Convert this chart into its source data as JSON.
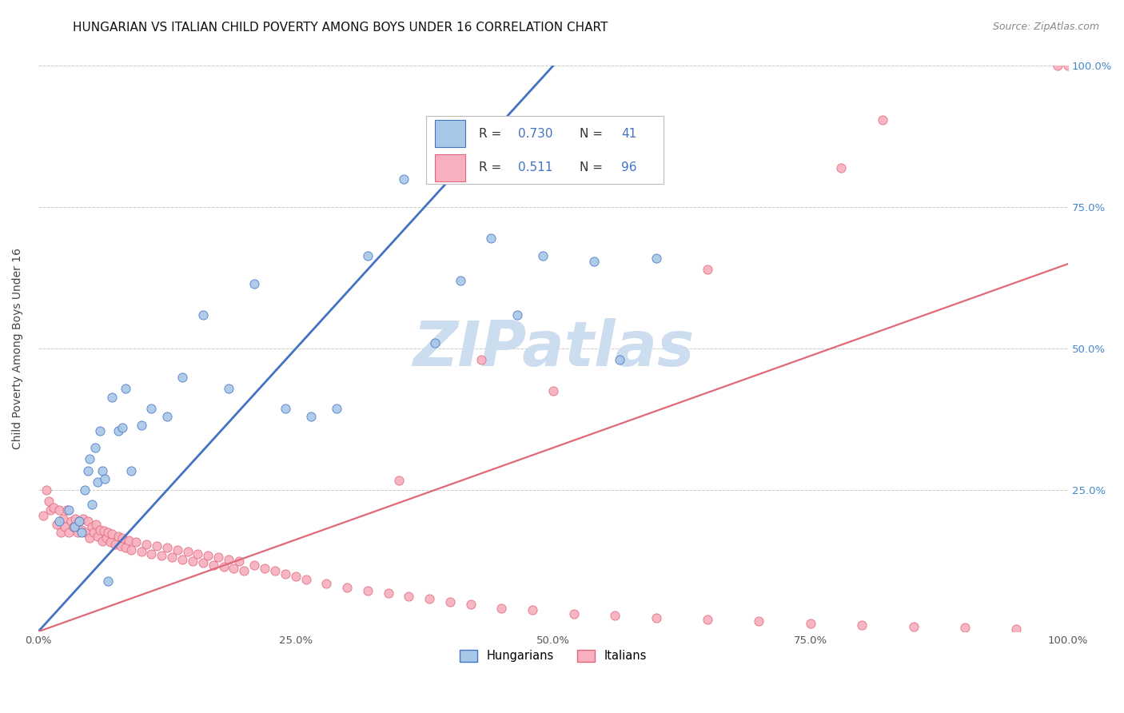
{
  "title": "HUNGARIAN VS ITALIAN CHILD POVERTY AMONG BOYS UNDER 16 CORRELATION CHART",
  "source": "Source: ZipAtlas.com",
  "ylabel": "Child Poverty Among Boys Under 16",
  "xlim": [
    0,
    1
  ],
  "ylim": [
    0,
    1
  ],
  "xtick_vals": [
    0.0,
    0.25,
    0.5,
    0.75,
    1.0
  ],
  "xtick_labels": [
    "0.0%",
    "25.0%",
    "50.0%",
    "75.0%",
    "100.0%"
  ],
  "ytick_vals": [
    0.25,
    0.5,
    0.75,
    1.0
  ],
  "ytick_labels_right": [
    "25.0%",
    "50.0%",
    "75.0%",
    "100.0%"
  ],
  "r_hungarian": "0.730",
  "n_hungarian": "41",
  "r_italian": "0.511",
  "n_italian": "96",
  "color_h": "#a8c8e8",
  "color_i": "#f8b0c0",
  "color_lh": "#4472c4",
  "color_li": "#e06878",
  "color_watermark": "#ccddf0",
  "watermark": "ZIPatlas",
  "legend_label_h": "Hungarians",
  "legend_label_i": "Italians",
  "title_fontsize": 11,
  "source_fontsize": 9,
  "tick_fontsize": 9.5,
  "ylabel_fontsize": 10,
  "hungarian_x": [
    0.02,
    0.03,
    0.035,
    0.04,
    0.042,
    0.045,
    0.048,
    0.05,
    0.052,
    0.055,
    0.058,
    0.06,
    0.062,
    0.065,
    0.068,
    0.072,
    0.078,
    0.082,
    0.085,
    0.09,
    0.1,
    0.11,
    0.125,
    0.14,
    0.16,
    0.185,
    0.21,
    0.24,
    0.265,
    0.29,
    0.32,
    0.355,
    0.385,
    0.41,
    0.44,
    0.465,
    0.49,
    0.515,
    0.54,
    0.565,
    0.6
  ],
  "hungarian_y": [
    0.195,
    0.215,
    0.185,
    0.195,
    0.175,
    0.25,
    0.285,
    0.305,
    0.225,
    0.325,
    0.265,
    0.355,
    0.285,
    0.27,
    0.09,
    0.415,
    0.355,
    0.36,
    0.43,
    0.285,
    0.365,
    0.395,
    0.38,
    0.45,
    0.56,
    0.43,
    0.615,
    0.395,
    0.38,
    0.395,
    0.665,
    0.8,
    0.51,
    0.62,
    0.695,
    0.56,
    0.665,
    0.815,
    0.655,
    0.48,
    0.66
  ],
  "italian_x": [
    0.005,
    0.008,
    0.01,
    0.012,
    0.015,
    0.018,
    0.02,
    0.022,
    0.024,
    0.026,
    0.028,
    0.03,
    0.032,
    0.034,
    0.036,
    0.038,
    0.04,
    0.042,
    0.044,
    0.046,
    0.048,
    0.05,
    0.052,
    0.054,
    0.056,
    0.058,
    0.06,
    0.062,
    0.064,
    0.066,
    0.068,
    0.07,
    0.072,
    0.075,
    0.078,
    0.08,
    0.082,
    0.085,
    0.088,
    0.09,
    0.095,
    0.1,
    0.105,
    0.11,
    0.115,
    0.12,
    0.125,
    0.13,
    0.135,
    0.14,
    0.145,
    0.15,
    0.155,
    0.16,
    0.165,
    0.17,
    0.175,
    0.18,
    0.185,
    0.19,
    0.195,
    0.2,
    0.21,
    0.22,
    0.23,
    0.24,
    0.25,
    0.26,
    0.28,
    0.3,
    0.32,
    0.34,
    0.36,
    0.38,
    0.4,
    0.42,
    0.45,
    0.48,
    0.52,
    0.56,
    0.6,
    0.65,
    0.7,
    0.75,
    0.8,
    0.85,
    0.9,
    0.95,
    1.0,
    0.35,
    0.43,
    0.5,
    0.65,
    0.78,
    0.82,
    0.99
  ],
  "italian_y": [
    0.205,
    0.25,
    0.23,
    0.215,
    0.22,
    0.19,
    0.215,
    0.175,
    0.2,
    0.185,
    0.215,
    0.175,
    0.195,
    0.185,
    0.2,
    0.175,
    0.195,
    0.18,
    0.2,
    0.175,
    0.195,
    0.165,
    0.185,
    0.175,
    0.19,
    0.168,
    0.18,
    0.16,
    0.178,
    0.165,
    0.175,
    0.158,
    0.172,
    0.155,
    0.168,
    0.152,
    0.165,
    0.148,
    0.162,
    0.145,
    0.158,
    0.142,
    0.155,
    0.138,
    0.152,
    0.135,
    0.148,
    0.132,
    0.145,
    0.128,
    0.142,
    0.125,
    0.138,
    0.122,
    0.135,
    0.118,
    0.132,
    0.115,
    0.128,
    0.112,
    0.125,
    0.108,
    0.118,
    0.112,
    0.108,
    0.102,
    0.098,
    0.092,
    0.085,
    0.078,
    0.072,
    0.068,
    0.062,
    0.058,
    0.052,
    0.048,
    0.042,
    0.038,
    0.032,
    0.028,
    0.025,
    0.022,
    0.018,
    0.015,
    0.012,
    0.009,
    0.007,
    0.005,
    1.0,
    0.268,
    0.48,
    0.425,
    0.64,
    0.82,
    0.905,
    1.0
  ],
  "line_h_x0": 0.0,
  "line_h_y0": 0.0,
  "line_h_x1": 0.5,
  "line_h_y1": 1.0,
  "line_i_x0": 0.0,
  "line_i_y0": 0.0,
  "line_i_x1": 1.0,
  "line_i_y1": 0.65
}
